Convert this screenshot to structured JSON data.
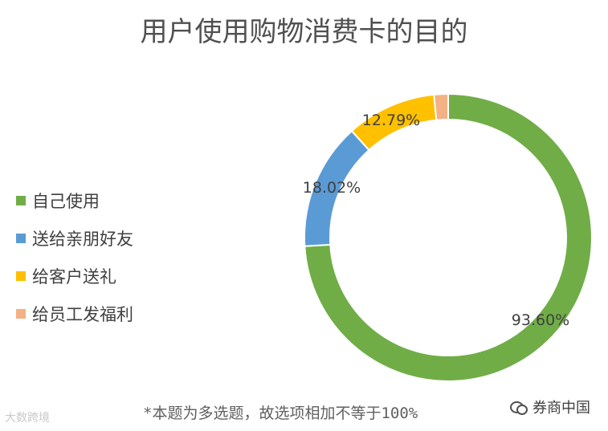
{
  "chart_data": {
    "type": "pie",
    "title": "用户使用购物消费卡的目的",
    "categories": [
      "自己使用",
      "送给亲朋好友",
      "给客户送礼",
      "给员工发福利"
    ],
    "values": [
      93.6,
      18.02,
      12.79,
      2.0
    ],
    "data_labels": [
      "93.60%",
      "18.02%",
      "12.79%",
      ""
    ],
    "colors": [
      "#70ad47",
      "#5b9bd5",
      "#ffc000",
      "#f4b183"
    ],
    "legend": "left",
    "style": "doughnut"
  },
  "footnote": "*本题为多选题，故选项相加不等于100%",
  "watermark_left": "大数跨境",
  "watermark_right": "券商中国"
}
